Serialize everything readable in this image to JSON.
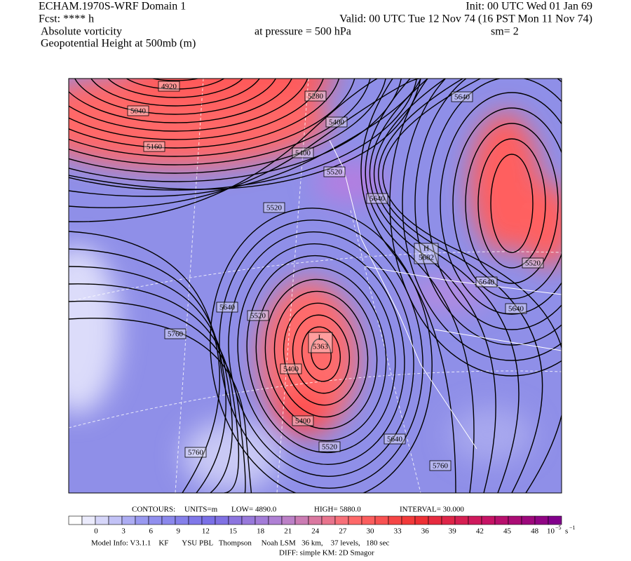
{
  "header": {
    "title": "ECHAM.1970S-WRF Domain 1",
    "fcst": "Fcst: **** h",
    "field1": "Absolute vorticity",
    "field2": "Geopotential Height at 500mb (m)",
    "init": "Init: 00 UTC Wed 01 Jan 69",
    "valid": "Valid: 00 UTC Tue 12 Nov 74 (16 PST Mon 11 Nov 74)",
    "pressure": "at pressure =  500 hPa",
    "sm": "sm= 2"
  },
  "map": {
    "contour_labels": [
      4920,
      5040,
      5160,
      5280,
      5400,
      5400,
      5520,
      5520,
      5640,
      5640,
      5520,
      5640,
      5640,
      5640,
      5520,
      5760,
      5400,
      5400,
      5520,
      5640,
      5760,
      5760
    ],
    "high": {
      "letter": "H",
      "value": 5682
    },
    "low": {
      "letter": "L",
      "value": 5363
    }
  },
  "contour_info": {
    "label": "CONTOURS:",
    "units": "UNITS=m",
    "low": "LOW=   4890.0",
    "high": "HIGH=  5880.0",
    "interval": "INTERVAL=    30.000"
  },
  "colorbar": {
    "ticks": [
      0,
      3,
      6,
      9,
      12,
      15,
      18,
      21,
      24,
      27,
      30,
      33,
      36,
      39,
      42,
      45,
      48
    ],
    "unit_base": "10",
    "unit_exp": "−5",
    "unit_s": "s",
    "unit_s_exp": "−1"
  },
  "footer": {
    "model_info": "Model Info: V3.1.1    KF       YSU PBL   Thompson     Noah LSM   36 km,    37 levels,   180 sec",
    "diff": "DIFF: simple KM: 2D Smagor"
  }
}
